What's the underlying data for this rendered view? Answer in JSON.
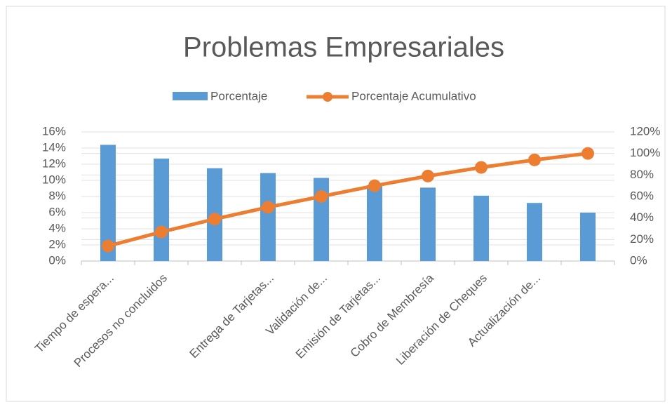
{
  "chart_data": {
    "type": "pareto",
    "title": "Problemas Empresariales",
    "categories": [
      "Tiempo de espera...",
      "Procesos no concluidos",
      null,
      "Entrega de Tarjetas...",
      "Validación de...",
      "Emisión de Tarjetas...",
      "Cobro de Membresía",
      "Liberación de Cheques",
      "Actualización de...",
      null
    ],
    "series": [
      {
        "name": "Porcentaje",
        "color": "#5b9bd5",
        "values": [
          14.4,
          12.7,
          11.5,
          10.9,
          10.3,
          9.4,
          9.1,
          8.1,
          7.2,
          6.0
        ]
      },
      {
        "name": "Porcentaje Acumulativo",
        "color": "#ed7d31",
        "axis": "y2",
        "values": [
          14,
          27,
          39,
          50,
          60,
          70,
          79,
          87,
          94,
          100
        ]
      }
    ],
    "ylim": [
      0,
      16
    ],
    "yticks": [
      {
        "value": 0,
        "label": "0%"
      },
      {
        "value": 2,
        "label": "2%"
      },
      {
        "value": 4,
        "label": "4%"
      },
      {
        "value": 6,
        "label": "6%"
      },
      {
        "value": 8,
        "label": "8%"
      },
      {
        "value": 10,
        "label": "10%"
      },
      {
        "value": 12,
        "label": "12%"
      },
      {
        "value": 14,
        "label": "14%"
      },
      {
        "value": 16,
        "label": "16%"
      }
    ],
    "y2lim": [
      0,
      120
    ],
    "y2ticks": [
      {
        "value": 0,
        "label": "0%"
      },
      {
        "value": 20,
        "label": "20%"
      },
      {
        "value": 40,
        "label": "40%"
      },
      {
        "value": 60,
        "label": "60%"
      },
      {
        "value": 80,
        "label": "80%"
      },
      {
        "value": 100,
        "label": "100%"
      },
      {
        "value": 120,
        "label": "120%"
      }
    ],
    "grid": true,
    "legend": "top"
  }
}
